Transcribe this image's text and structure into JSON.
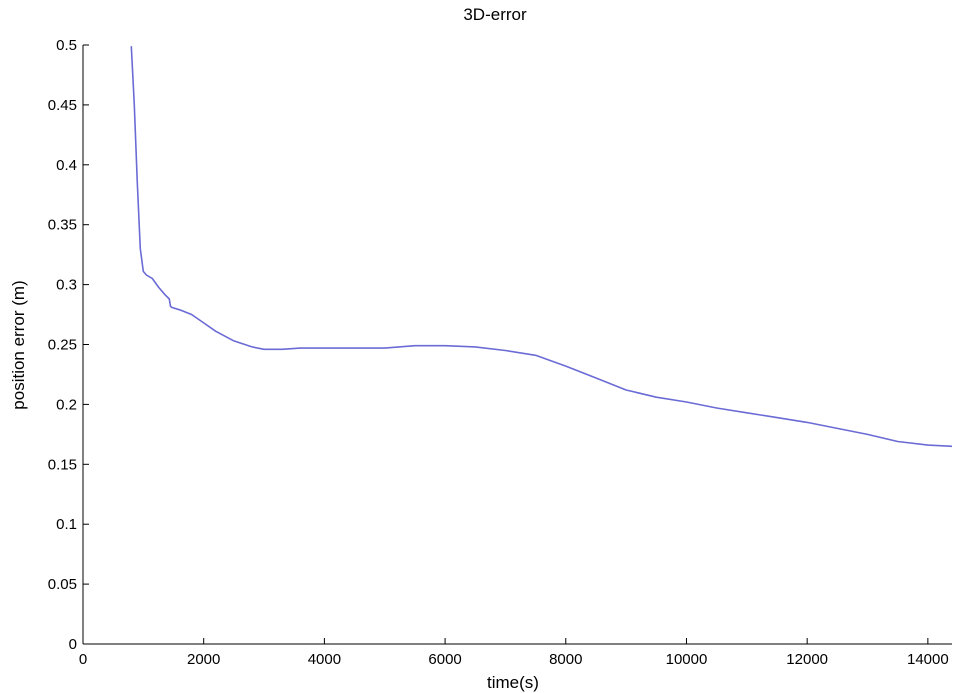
{
  "chart_data": {
    "type": "line",
    "title": "3D-error",
    "xlabel": "time(s)",
    "ylabel": "position error (m)",
    "xlim": [
      0,
      14400
    ],
    "ylim": [
      0,
      0.5
    ],
    "xticks": [
      0,
      2000,
      4000,
      6000,
      8000,
      10000,
      12000,
      14000
    ],
    "yticks": [
      0,
      0.05,
      0.1,
      0.15,
      0.2,
      0.25,
      0.3,
      0.35,
      0.4,
      0.45,
      0.5
    ],
    "xtick_labels": [
      "0",
      "2000",
      "4000",
      "6000",
      "8000",
      "10000",
      "12000",
      "14000"
    ],
    "ytick_labels": [
      "0",
      "0.05",
      "0.1",
      "0.15",
      "0.2",
      "0.25",
      "0.3",
      "0.35",
      "0.4",
      "0.45",
      "0.5"
    ],
    "grid": false,
    "line_color": "#6b6bd6",
    "series": [
      {
        "x": [
          800,
          850,
          900,
          950,
          1000,
          1050,
          1150,
          1250,
          1350,
          1430,
          1450,
          1470,
          1600,
          1800,
          2000,
          2200,
          2500,
          2800,
          3000,
          3300,
          3600,
          4000,
          4500,
          5000,
          5500,
          6000,
          6500,
          7000,
          7500,
          8000,
          8500,
          9000,
          9500,
          10000,
          10500,
          11000,
          11500,
          12000,
          12500,
          13000,
          13500,
          14000,
          14400
        ],
        "y": [
          0.499,
          0.45,
          0.385,
          0.33,
          0.311,
          0.308,
          0.305,
          0.298,
          0.292,
          0.288,
          0.282,
          0.281,
          0.279,
          0.275,
          0.268,
          0.261,
          0.253,
          0.248,
          0.246,
          0.246,
          0.247,
          0.247,
          0.247,
          0.247,
          0.249,
          0.249,
          0.248,
          0.245,
          0.241,
          0.232,
          0.222,
          0.212,
          0.206,
          0.202,
          0.197,
          0.193,
          0.189,
          0.185,
          0.18,
          0.175,
          0.169,
          0.166,
          0.165
        ]
      }
    ]
  }
}
